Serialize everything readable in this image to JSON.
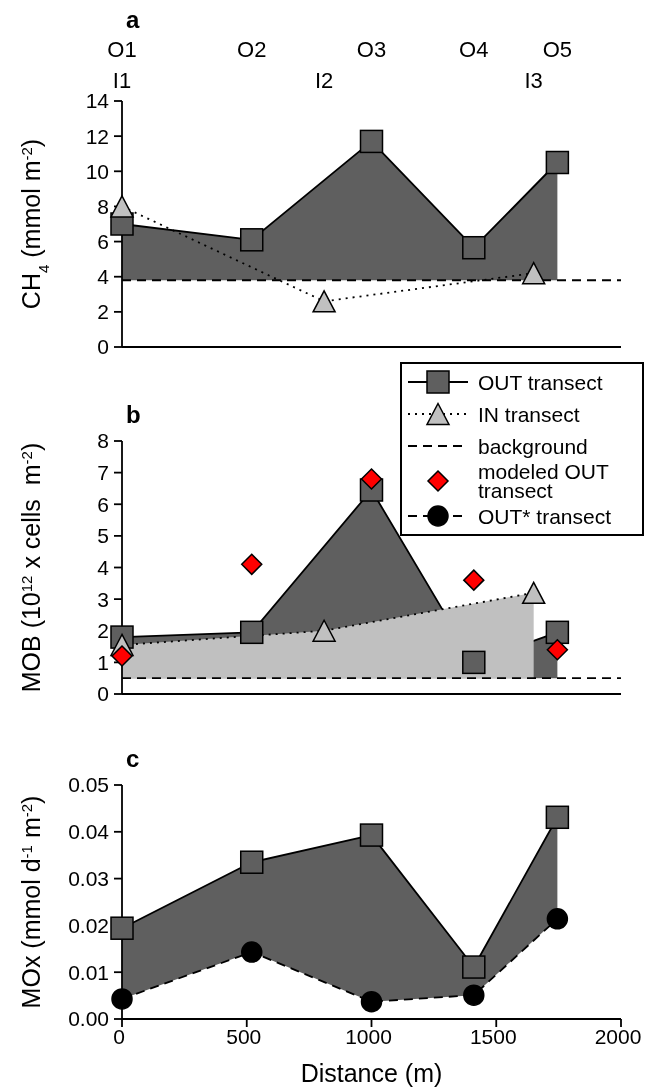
{
  "chart_data": [
    {
      "type": "line",
      "title": "a",
      "ylabel": "CH$_{4}$ (mmol m$^{-2}$)",
      "xlim": [
        0,
        2000
      ],
      "xticks": [
        0,
        500,
        1000,
        1500,
        2000
      ],
      "ylim": [
        0,
        14
      ],
      "yticks": [
        0,
        2,
        4,
        6,
        8,
        10,
        12,
        14
      ],
      "tick_labels": "y",
      "annotations": [
        "O1",
        "O2",
        "O3",
        "O4",
        "O5",
        "I1",
        "I2",
        "I3"
      ],
      "series": [
        {
          "type": "area",
          "color": "#5f5f5f",
          "marker": "square",
          "line_style": "solid",
          "x": [
            0,
            520,
            1000,
            1410,
            1745
          ],
          "values": [
            7.0,
            6.1,
            11.7,
            5.65,
            10.5
          ]
        },
        {
          "type": "line",
          "color": "#c0c0c0",
          "marker": "triangle",
          "line_style": "dotted",
          "x": [
            0,
            810,
            1650
          ],
          "values": [
            8.0,
            2.6,
            4.2
          ]
        }
      ],
      "ref_lines": [
        {
          "axis": "y",
          "value": 3.8,
          "line_style": "dashed",
          "color": "#000000"
        }
      ]
    },
    {
      "type": "line",
      "title": "b",
      "ylabel": "MOB (10$^{12}$ x cells  m$^{-2}$)",
      "xlim": [
        0,
        2000
      ],
      "xticks": [
        0,
        500,
        1000,
        1500,
        2000
      ],
      "ylim": [
        0,
        8
      ],
      "yticks": [
        0,
        1,
        2,
        3,
        4,
        5,
        6,
        7,
        8
      ],
      "tick_labels": "y",
      "legend": "top right",
      "series": [
        {
          "name": "OUT transect",
          "type": "area",
          "color": "#5f5f5f",
          "marker": "square",
          "line_style": "solid",
          "x": [
            0,
            520,
            1000,
            1410,
            1745
          ],
          "values": [
            1.8,
            1.95,
            6.45,
            1.0,
            1.95
          ]
        },
        {
          "name": "IN transect",
          "type": "area",
          "color": "#c0c0c0",
          "marker": "triangle",
          "line_style": "dotted",
          "x": [
            0,
            810,
            1650
          ],
          "values": [
            1.55,
            2.0,
            3.2
          ]
        },
        {
          "name": "modeled OUT transect",
          "type": "scatter",
          "color": "#ff0000",
          "marker": "diamond",
          "x": [
            0,
            520,
            1000,
            1410,
            1745
          ],
          "values": [
            1.2,
            4.1,
            6.8,
            3.6,
            1.4
          ]
        }
      ],
      "ref_lines": [
        {
          "axis": "y",
          "value": 0.5,
          "label": "background",
          "line_style": "dashed",
          "color": "#000000"
        }
      ]
    },
    {
      "type": "line",
      "title": "c",
      "ylabel": "MOx (mmol d$^{-1}$ m$^{-2}$)",
      "xlabel": "Distance (m)",
      "xlim": [
        0,
        2000
      ],
      "xticks": [
        0,
        500,
        1000,
        1500,
        2000
      ],
      "ylim": [
        0,
        0.05
      ],
      "yticks": [
        {
          "value": 0,
          "label": "0.00"
        },
        {
          "value": 0.01,
          "label": "0.01"
        },
        {
          "value": 0.02,
          "label": "0.02"
        },
        {
          "value": 0.03,
          "label": "0.03"
        },
        {
          "value": 0.04,
          "label": "0.04"
        },
        {
          "value": 0.05,
          "label": "0.05"
        }
      ],
      "series": [
        {
          "type": "line",
          "color": "#5f5f5f",
          "marker": "square",
          "line_style": "solid",
          "x": [
            0,
            520,
            1000,
            1410,
            1745
          ],
          "values": [
            0.0194,
            0.0335,
            0.0393,
            0.0111,
            0.0431
          ],
          "lower": [
            0.0043,
            0.0143,
            0.0037,
            0.0051,
            0.0214
          ],
          "upper": [
            0.0194,
            0.0335,
            0.0393,
            0.0111,
            0.0431
          ]
        },
        {
          "name": "OUT* transect",
          "type": "line",
          "color": "#000000",
          "marker": "circle",
          "line_style": "dashed",
          "x": [
            0,
            520,
            1000,
            1410,
            1745
          ],
          "values": [
            0.0043,
            0.0143,
            0.0037,
            0.0051,
            0.0214
          ]
        }
      ]
    }
  ]
}
